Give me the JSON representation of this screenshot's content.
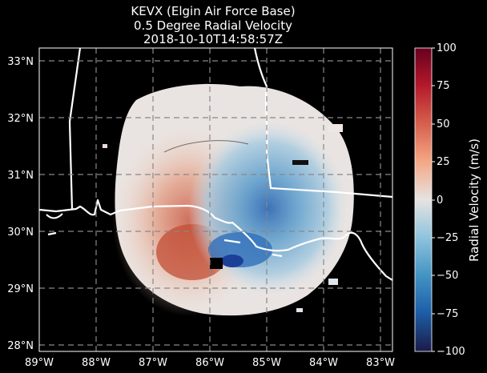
{
  "title": {
    "line1": "KEVX (Elgin Air Force Base)",
    "line2": "0.5 Degree Radial Velocity",
    "line3": "2018-10-10T14:58:57Z"
  },
  "map": {
    "lon_ticks": [
      "89°W",
      "88°W",
      "87°W",
      "86°W",
      "85°W",
      "84°W",
      "83°W"
    ],
    "lat_ticks": [
      "33°N",
      "32°N",
      "31°N",
      "30°N",
      "29°N",
      "28°N"
    ],
    "gridlines": true
  },
  "colorbar": {
    "label": "Radial Velocity (m/s)",
    "ticks": [
      "100",
      "75",
      "50",
      "25",
      "0",
      "−25",
      "−50",
      "−75",
      "−100"
    ],
    "range": [
      -100,
      100
    ],
    "stops": [
      "#ffffff",
      "#67001f",
      "#b2182b",
      "#d6604d",
      "#f4a582",
      "#e8e2de",
      "#92c5de",
      "#4393c3",
      "#2166ac",
      "#053061",
      "#1d1f4a"
    ]
  }
}
